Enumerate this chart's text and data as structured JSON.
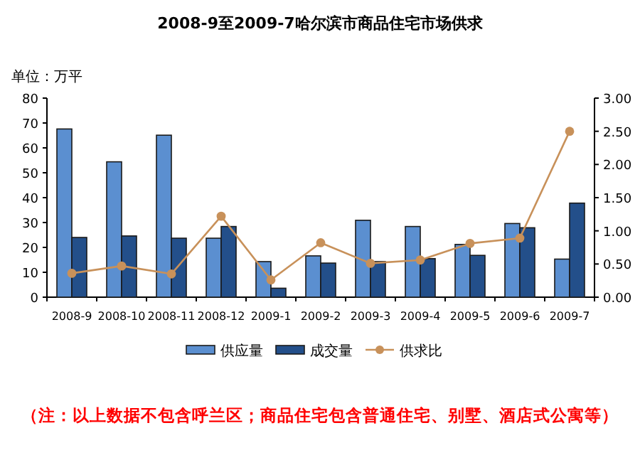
{
  "chart_data": {
    "type": "bar",
    "title": "2008-9至2009-7哈尔滨市商品住宅市场供求",
    "ylabel": "单位：万平",
    "categories": [
      "2008-9",
      "2008-10",
      "2008-11",
      "2008-12",
      "2009-1",
      "2009-2",
      "2009-3",
      "2009-4",
      "2009-5",
      "2009-6",
      "2009-7"
    ],
    "series": [
      {
        "name": "供应量",
        "color": "#5b8fd0",
        "values": [
          67.6,
          54.4,
          65.1,
          23.7,
          14.3,
          16.6,
          30.9,
          28.4,
          21.2,
          29.6,
          15.3
        ]
      },
      {
        "name": "成交量",
        "color": "#234f8a",
        "values": [
          24.0,
          24.6,
          23.7,
          28.4,
          3.6,
          13.7,
          14.3,
          15.5,
          16.8,
          27.9,
          37.8
        ]
      },
      {
        "name": "供求比",
        "color": "#c8915a",
        "type": "line",
        "axis": "y2",
        "marker": "circle",
        "values": [
          0.36,
          0.47,
          0.35,
          1.22,
          0.26,
          0.82,
          0.51,
          0.56,
          0.81,
          0.89,
          2.5
        ]
      }
    ],
    "ylim": [
      0,
      80
    ],
    "yticks": [
      0,
      10,
      20,
      30,
      40,
      50,
      60,
      70,
      80
    ],
    "y2lim": [
      0,
      3
    ],
    "y2ticks": [
      {
        "value": 0,
        "label": "0.00"
      },
      {
        "value": 0.5,
        "label": "0.50"
      },
      {
        "value": 1,
        "label": "1.00"
      },
      {
        "value": 1.5,
        "label": "1.50"
      },
      {
        "value": 2,
        "label": "2.00"
      },
      {
        "value": 2.5,
        "label": "2.50"
      },
      {
        "value": 3,
        "label": "3.00"
      }
    ],
    "legend": "bottom",
    "annotations": [
      "（注：以上数据不包含呼兰区；商品住宅包含普通住宅、别墅、酒店式公寓等）"
    ]
  }
}
